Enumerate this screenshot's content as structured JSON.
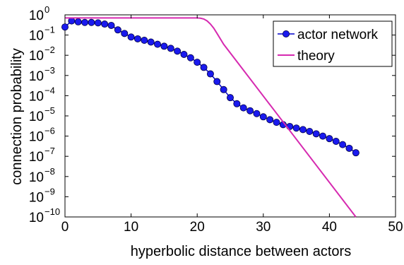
{
  "chart_data": {
    "type": "line",
    "xlabel": "hyperbolic distance between actors",
    "ylabel": "connection probability",
    "xlim": [
      0,
      50
    ],
    "ylim": [
      1e-10,
      1
    ],
    "y_scale": "log",
    "x_ticks": [
      "0",
      "10",
      "20",
      "30",
      "40",
      "50"
    ],
    "y_tick_base": "10",
    "y_tick_exponents": [
      "0",
      "−1",
      "−2",
      "−3",
      "−4",
      "−5",
      "−6",
      "−7",
      "−8",
      "−9",
      "−10"
    ],
    "legend_position": "top-right",
    "series": [
      {
        "name": "actor network",
        "style": "line-with-markers",
        "color": "#0000cc",
        "marker_color": "#1a1aee",
        "x": [
          0,
          1,
          2,
          3,
          4,
          5,
          6,
          7,
          8,
          9,
          10,
          11,
          12,
          13,
          14,
          15,
          16,
          17,
          18,
          19,
          20,
          21,
          22,
          23,
          24,
          25,
          26,
          27,
          28,
          29,
          30,
          31,
          32,
          33,
          34,
          35,
          36,
          37,
          38,
          39,
          40,
          41,
          42,
          43,
          44
        ],
        "y": [
          0.25,
          0.5,
          0.45,
          0.42,
          0.42,
          0.4,
          0.35,
          0.3,
          0.18,
          0.12,
          0.08,
          0.065,
          0.055,
          0.045,
          0.035,
          0.028,
          0.022,
          0.016,
          0.011,
          0.0075,
          0.0045,
          0.0025,
          0.0012,
          0.0005,
          0.0002,
          8e-05,
          4e-05,
          2.5e-05,
          1.8e-05,
          1.3e-05,
          9e-06,
          6.5e-06,
          4.8e-06,
          3.7e-06,
          3e-06,
          2.5e-06,
          2.1e-06,
          1.7e-06,
          1.3e-06,
          1e-06,
          7.5e-07,
          5.5e-07,
          3.8e-07,
          2.5e-07,
          1.5e-07
        ]
      },
      {
        "name": "theory",
        "style": "line",
        "color": "#d62ab0",
        "x": [
          0,
          20,
          20.5,
          21,
          21.5,
          22,
          22.5,
          23,
          24,
          44
        ],
        "y": [
          0.7,
          0.7,
          0.68,
          0.62,
          0.5,
          0.35,
          0.22,
          0.12,
          0.035,
          1e-10
        ]
      }
    ]
  }
}
